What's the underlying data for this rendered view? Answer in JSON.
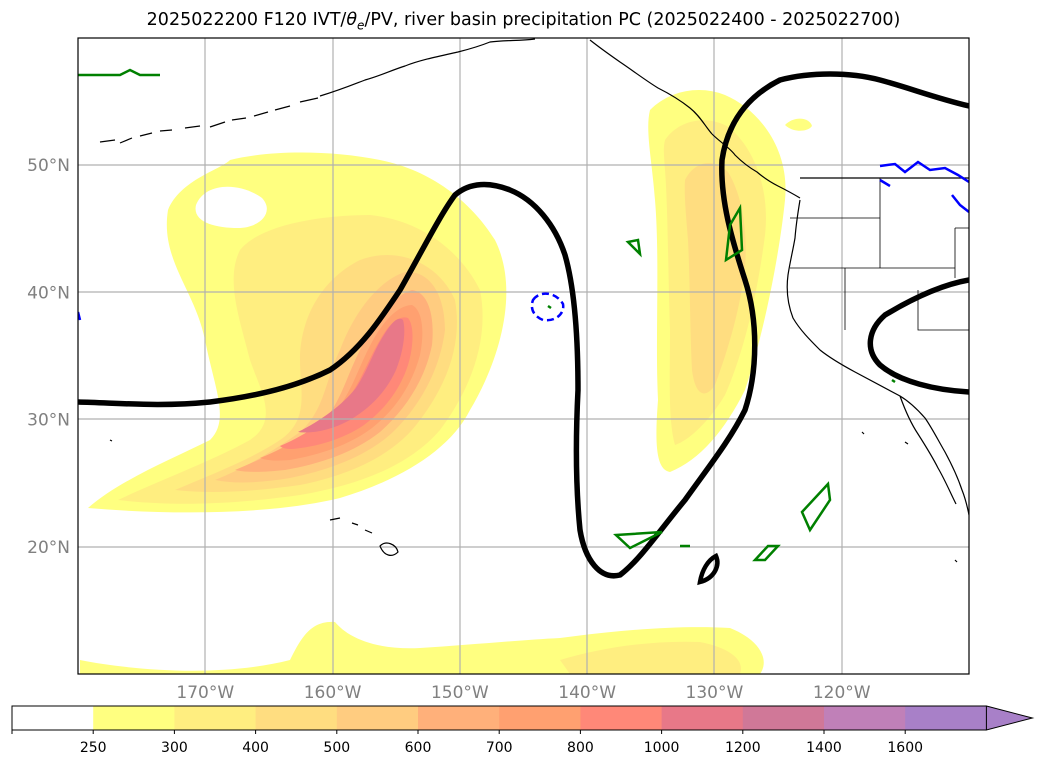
{
  "title": {
    "prefix": "2025022200 F120 IVT/",
    "theta": "θ",
    "theta_sub": "e",
    "suffix": "/PV, river basin precipitation PC (2025022400 - 2025022700)"
  },
  "chart_data": {
    "type": "heatmap",
    "map_projection": "Plate Carrée",
    "lon_range": [
      -180,
      -110
    ],
    "lat_range": [
      10,
      60
    ],
    "grid": true,
    "lat_ticks": [
      {
        "value": 50,
        "label": "50°N"
      },
      {
        "value": 40,
        "label": "40°N"
      },
      {
        "value": 30,
        "label": "30°N"
      },
      {
        "value": 20,
        "label": "20°N"
      }
    ],
    "lon_ticks": [
      {
        "value": -170,
        "label": "170°W"
      },
      {
        "value": -160,
        "label": "160°W"
      },
      {
        "value": -150,
        "label": "150°W"
      },
      {
        "value": -140,
        "label": "140°W"
      },
      {
        "value": -130,
        "label": "130°W"
      },
      {
        "value": -120,
        "label": "120°W"
      }
    ],
    "colorbar": {
      "levels": [
        "250",
        "300",
        "400",
        "500",
        "600",
        "700",
        "800",
        "1000",
        "1200",
        "1400",
        "1600"
      ],
      "colors": [
        "#ffffff",
        "#ffff80",
        "#ffee80",
        "#ffdd80",
        "#ffcc80",
        "#ffb07a",
        "#ffa070",
        "#ff8878",
        "#e87888",
        "#d07898",
        "#c080b8",
        "#a880c8"
      ],
      "extend": "max"
    },
    "ivt_maxima": [
      {
        "lon": -155,
        "lat": 35,
        "ivt": 1000
      },
      {
        "lon": -130,
        "lat": 42,
        "ivt": 500
      }
    ],
    "series_colors": {
      "pv_contour": "#000000",
      "green_contour": "#008000",
      "blue_contour": "#0000ff"
    }
  }
}
